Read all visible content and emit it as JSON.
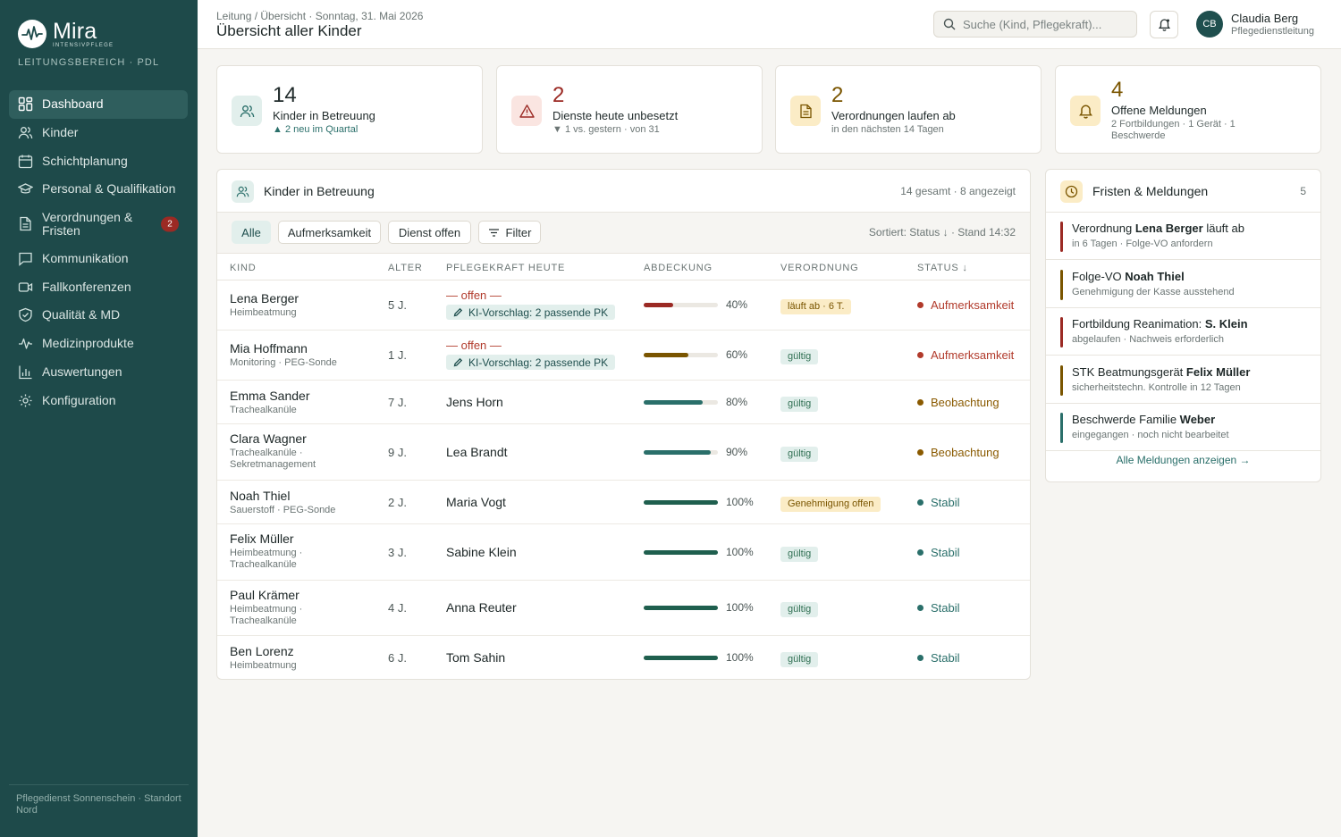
{
  "sidebar": {
    "brand_name": "Mira",
    "brand_sub": "INTENSIVPFLEGE",
    "area_label": "LEITUNGSBEREICH · PDL",
    "items": [
      {
        "label": "Dashboard",
        "icon": "grid-icon",
        "active": true
      },
      {
        "label": "Kinder",
        "icon": "users-icon"
      },
      {
        "label": "Schichtplanung",
        "icon": "calendar-icon"
      },
      {
        "label": "Personal & Qualifikation",
        "icon": "graduation-cap-icon"
      },
      {
        "label": "Verordnungen & Fristen",
        "icon": "document-icon",
        "badge": "2"
      },
      {
        "label": "Kommunikation",
        "icon": "chat-icon"
      },
      {
        "label": "Fallkonferenzen",
        "icon": "video-icon"
      },
      {
        "label": "Qualität & MD",
        "icon": "shield-check-icon"
      },
      {
        "label": "Medizinprodukte",
        "icon": "pulse-icon"
      },
      {
        "label": "Auswertungen",
        "icon": "bar-chart-icon"
      },
      {
        "label": "Konfiguration",
        "icon": "gear-icon"
      }
    ],
    "footer": "Pflegedienst Sonnenschein · Standort Nord"
  },
  "header": {
    "breadcrumb": "Leitung / Übersicht · Sonntag, 31. Mai 2026",
    "title": "Übersicht aller Kinder",
    "search_placeholder": "Suche (Kind, Pflegekraft)...",
    "user_initials": "CB",
    "user_name": "Claudia Berg",
    "user_role": "Pflegedienstleitung"
  },
  "kpis": [
    {
      "value": "14",
      "label": "Kinder in Betreuung",
      "sub": "▲ 2 neu im Quartal",
      "color": "#1f2a2a",
      "icon": "users-icon"
    },
    {
      "value": "2",
      "label": "Dienste heute unbesetzt",
      "sub": "▼ 1 vs. gestern · von 31",
      "color": "#9b2a24",
      "icon": "warning-icon"
    },
    {
      "value": "2",
      "label": "Verordnungen laufen ab",
      "sub": "in den nächsten 14 Tagen",
      "color": "#7a5500",
      "icon": "document-icon"
    },
    {
      "value": "4",
      "label": "Offene Meldungen",
      "sub": "2 Fortbildungen · 1 Gerät · 1 Beschwerde",
      "color": "#7a5500",
      "icon": "bell-icon"
    }
  ],
  "kids_panel": {
    "title": "Kinder in Betreuung",
    "meta": "14 gesamt · 8 angezeigt",
    "filters": [
      "Alle",
      "Aufmerksamkeit",
      "Dienst offen",
      "Filter"
    ],
    "sort_meta": "Sortiert: Status ↓ · Stand 14:32",
    "columns": [
      "KIND",
      "ALTER",
      "PFLEGEKRAFT HEUTE",
      "ABDECKUNG",
      "VERORDNUNG",
      "STATUS ↓"
    ],
    "rows": [
      {
        "name": "Lena Berger",
        "diag": "Heimbeatmung",
        "age": "5 J.",
        "nurse": "— offen —",
        "open": true,
        "ai": "KI-Vorschlag: 2 passende PK",
        "coverage": 40,
        "cov_label": "40%",
        "vo": "läuft ab · 6 T.",
        "vo_type": "warn",
        "status": "Aufmerksamkeit",
        "status_type": "alert"
      },
      {
        "name": "Mia Hoffmann",
        "diag": "Monitoring · PEG-Sonde",
        "age": "1 J.",
        "nurse": "— offen —",
        "open": true,
        "ai": "KI-Vorschlag: 2 passende PK",
        "coverage": 60,
        "cov_label": "60%",
        "vo": "gültig",
        "vo_type": "ok",
        "status": "Aufmerksamkeit",
        "status_type": "alert"
      },
      {
        "name": "Emma Sander",
        "diag": "Trachealkanüle",
        "age": "7 J.",
        "nurse": "Jens Horn",
        "coverage": 80,
        "cov_label": "80%",
        "vo": "gültig",
        "vo_type": "ok",
        "status": "Beobachtung",
        "status_type": "watch"
      },
      {
        "name": "Clara Wagner",
        "diag": "Trachealkanüle · Sekretmanagement",
        "age": "9 J.",
        "nurse": "Lea Brandt",
        "coverage": 90,
        "cov_label": "90%",
        "vo": "gültig",
        "vo_type": "ok",
        "status": "Beobachtung",
        "status_type": "watch"
      },
      {
        "name": "Noah Thiel",
        "diag": "Sauerstoff · PEG-Sonde",
        "age": "2 J.",
        "nurse": "Maria Vogt",
        "coverage": 100,
        "cov_label": "100%",
        "vo": "Genehmigung offen",
        "vo_type": "warn",
        "status": "Stabil",
        "status_type": "ok"
      },
      {
        "name": "Felix Müller",
        "diag": "Heimbeatmung · Trachealkanüle",
        "age": "3 J.",
        "nurse": "Sabine Klein",
        "coverage": 100,
        "cov_label": "100%",
        "vo": "gültig",
        "vo_type": "ok",
        "status": "Stabil",
        "status_type": "ok"
      },
      {
        "name": "Paul Krämer",
        "diag": "Heimbeatmung · Trachealkanüle",
        "age": "4 J.",
        "nurse": "Anna Reuter",
        "coverage": 100,
        "cov_label": "100%",
        "vo": "gültig",
        "vo_type": "ok",
        "status": "Stabil",
        "status_type": "ok"
      },
      {
        "name": "Ben Lorenz",
        "diag": "Heimbeatmung",
        "age": "6 J.",
        "nurse": "Tom Sahin",
        "coverage": 100,
        "cov_label": "100%",
        "vo": "gültig",
        "vo_type": "ok",
        "status": "Stabil",
        "status_type": "ok"
      }
    ]
  },
  "fristen_panel": {
    "title": "Fristen & Meldungen",
    "count": "5",
    "items": [
      {
        "pre": "Verordnung ",
        "strong": "Lena Berger",
        "post": " läuft ab",
        "sub": "in 6 Tagen · Folge-VO anfordern",
        "color": "#9b2a24"
      },
      {
        "pre": "Folge-VO ",
        "strong": "Noah Thiel",
        "post": "",
        "sub": "Genehmigung der Kasse ausstehend",
        "color": "#7a5500"
      },
      {
        "pre": "Fortbildung Reanimation: ",
        "strong": "S. Klein",
        "post": "",
        "sub": "abgelaufen · Nachweis erforderlich",
        "color": "#9b2a24"
      },
      {
        "pre": "STK Beatmungsgerät ",
        "strong": "Felix Müller",
        "post": "",
        "sub": "sicherheitstechn. Kontrolle in 12 Tagen",
        "color": "#7a5500"
      },
      {
        "pre": "Beschwerde Familie ",
        "strong": "Weber",
        "post": "",
        "sub": "eingegangen · noch nicht bearbeitet",
        "color": "#2a6f6a"
      }
    ],
    "link": "Alle Meldungen anzeigen →"
  },
  "colors": {
    "alert": "#b13a2b",
    "watch": "#8a5a00",
    "ok": "#2a6f6a",
    "bar_alert": "#9b2a24",
    "bar_watch": "#7a5500",
    "bar_mid": "#2a6f6a",
    "bar_full": "#1f5f4e"
  }
}
